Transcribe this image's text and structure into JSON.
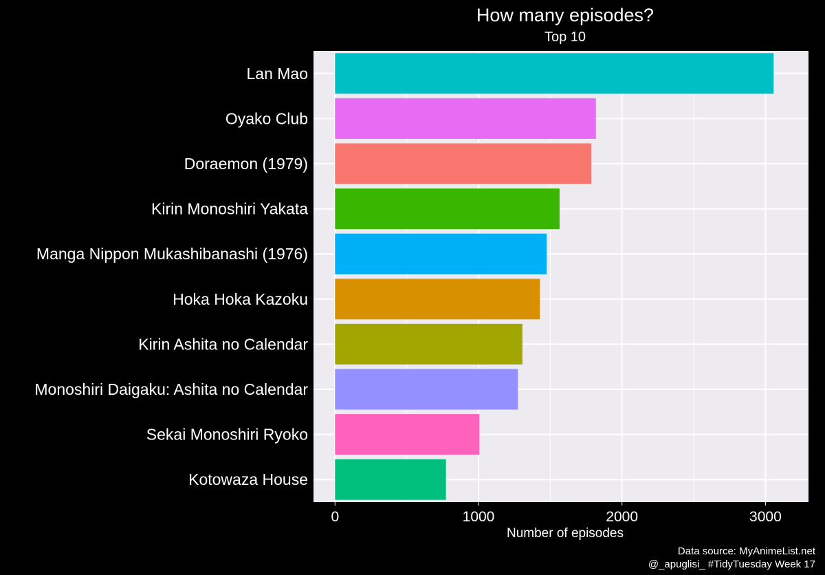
{
  "chart_data": {
    "type": "bar",
    "orientation": "horizontal",
    "title": "How many episodes?",
    "subtitle": "Top 10",
    "xlabel": "Number of episodes",
    "ylabel": "",
    "xlim": [
      -150,
      3300
    ],
    "xticks": [
      0,
      1000,
      2000,
      3000
    ],
    "xtick_labels": [
      "0",
      "1000",
      "2000",
      "3000"
    ],
    "grid": true,
    "legend": "none",
    "categories": [
      "Lan Mao",
      "Oyako Club",
      "Doraemon (1979)",
      "Kirin Monoshiri Yakata",
      "Manga Nippon Mukashibanashi (1976)",
      "Hoka Hoka Kazoku",
      "Kirin Ashita no Calendar",
      "Monoshiri Daigaku: Ashita no Calendar",
      "Sekai Monoshiri Ryoko",
      "Kotowaza House"
    ],
    "values": [
      3057,
      1818,
      1787,
      1565,
      1475,
      1428,
      1306,
      1274,
      1006,
      773
    ],
    "colors": [
      "#00BFC4",
      "#E76BF3",
      "#F8766D",
      "#39B600",
      "#00B0F6",
      "#D89000",
      "#A3A500",
      "#9590FF",
      "#FF62BC",
      "#00BF7D"
    ],
    "caption_lines": [
      "Data source: MyAnimeList.net",
      "@_apuglisi_ #TidyTuesday Week 17"
    ],
    "panel_background": "#EDEBF0",
    "gridline_color": "#FFFFFF"
  }
}
